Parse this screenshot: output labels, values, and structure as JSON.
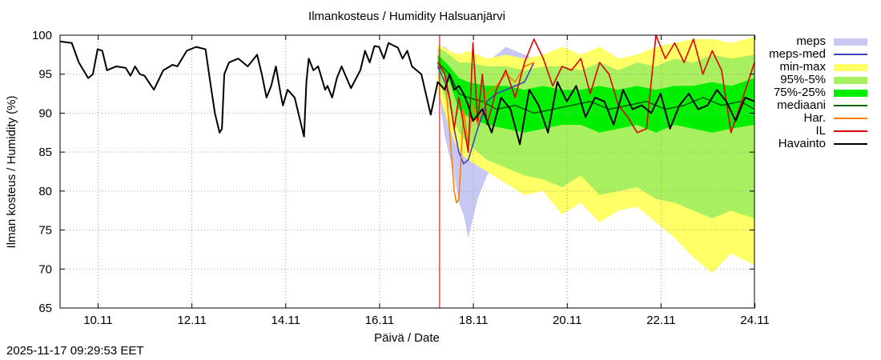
{
  "chart_data": {
    "type": "line",
    "title": "Ilmankosteus / Humidity  Halsuanjärvi",
    "xlabel": "Päivä / Date",
    "ylabel": "Ilman kosteus / Humidity (%)",
    "ylim": [
      65,
      100
    ],
    "yticks": [
      65,
      70,
      75,
      80,
      85,
      90,
      95,
      100
    ],
    "xlim": [
      9.3,
      24.1
    ],
    "xticks": [
      {
        "value": 10.11,
        "label": "10.11"
      },
      {
        "value": 12.11,
        "label": "12.11"
      },
      {
        "value": 14.11,
        "label": "14.11"
      },
      {
        "value": 16.11,
        "label": "16.11"
      },
      {
        "value": 18.11,
        "label": "18.11"
      },
      {
        "value": 20.11,
        "label": "20.11"
      },
      {
        "value": 22.11,
        "label": "22.11"
      },
      {
        "value": 24.11,
        "label": "24.11"
      }
    ],
    "forecast_start": 17.39,
    "timestamp": "2025-11-17 09:29:53 EET",
    "legend": [
      {
        "label": "meps",
        "color": "#c8c8f5",
        "kind": "box"
      },
      {
        "label": "meps-med",
        "color": "#4040c0",
        "kind": "line"
      },
      {
        "label": "min-max",
        "color": "#ffff66",
        "kind": "box"
      },
      {
        "label": "95%-5%",
        "color": "#a8f060",
        "kind": "box"
      },
      {
        "label": "75%-25%",
        "color": "#00ee00",
        "kind": "box"
      },
      {
        "label": "mediaani",
        "color": "#006400",
        "kind": "line"
      },
      {
        "label": "Har.",
        "color": "#ff8000",
        "kind": "line"
      },
      {
        "label": "IL",
        "color": "#e00000",
        "kind": "line"
      },
      {
        "label": "Havainto",
        "color": "#000000",
        "kind": "line"
      }
    ],
    "series": [
      {
        "name": "Havainto",
        "color": "#000000",
        "x": [
          9.3,
          9.55,
          9.7,
          9.9,
          10.0,
          10.1,
          10.2,
          10.3,
          10.5,
          10.7,
          10.8,
          10.9,
          11.0,
          11.1,
          11.3,
          11.5,
          11.7,
          11.8,
          12.0,
          12.2,
          12.4,
          12.5,
          12.6,
          12.7,
          12.75,
          12.8,
          12.9,
          13.1,
          13.3,
          13.5,
          13.6,
          13.7,
          13.8,
          13.9,
          14.0,
          14.05,
          14.15,
          14.3,
          14.4,
          14.5,
          14.55,
          14.6,
          14.7,
          14.8,
          14.95,
          15.0,
          15.1,
          15.2,
          15.3,
          15.5,
          15.7,
          15.8,
          15.9,
          16.0,
          16.1,
          16.2,
          16.3,
          16.5,
          16.6,
          16.7,
          16.8,
          17.0,
          17.2,
          17.35,
          17.5,
          17.6,
          17.7,
          17.8,
          17.9,
          18.0,
          18.1,
          18.3,
          18.5,
          18.7,
          18.9,
          19.1,
          19.3,
          19.5,
          19.7,
          19.9,
          20.1,
          20.3,
          20.5,
          20.7,
          20.9,
          21.1,
          21.3,
          21.5,
          21.7,
          21.9,
          22.1,
          22.3,
          22.5,
          22.7,
          22.9,
          23.1,
          23.3,
          23.5,
          23.7,
          23.9,
          24.1
        ],
        "values": [
          99.2,
          99.0,
          96.5,
          94.5,
          95.0,
          98.2,
          98.0,
          95.5,
          96.0,
          95.8,
          94.8,
          96.0,
          95.0,
          94.8,
          93.0,
          95.5,
          96.2,
          96.0,
          98.0,
          98.5,
          98.2,
          94.0,
          90.0,
          87.5,
          88.0,
          95.0,
          96.5,
          97.0,
          96.0,
          97.5,
          95.0,
          92.0,
          93.5,
          96.0,
          92.5,
          91.0,
          93.0,
          92.0,
          89.5,
          87.0,
          94.0,
          97.0,
          95.5,
          96.0,
          93.0,
          93.5,
          92.0,
          94.5,
          96.0,
          93.2,
          95.5,
          98.0,
          96.5,
          98.6,
          98.5,
          97.0,
          99.0,
          98.4,
          97.0,
          98.0,
          96.0,
          95.0,
          89.8,
          94.0,
          93.0,
          95.0,
          93.0,
          93.5,
          92.5,
          91.0,
          89.0,
          90.5,
          87.5,
          92.0,
          90.5,
          86.0,
          93.0,
          91.0,
          87.5,
          94.0,
          91.5,
          93.5,
          89.5,
          92.0,
          91.5,
          88.5,
          93.0,
          90.5,
          91.0,
          90.0,
          92.5,
          88.0,
          91.0,
          92.5,
          90.5,
          91.0,
          93.0,
          91.5,
          89.0,
          92.0,
          91.5
        ]
      },
      {
        "name": "mediaani",
        "color": "#006400",
        "x": [
          17.35,
          17.6,
          17.8,
          18.0,
          18.3,
          18.6,
          19.0,
          19.4,
          19.8,
          20.2,
          20.6,
          21.0,
          21.4,
          21.8,
          22.2,
          22.6,
          23.0,
          23.4,
          23.8,
          24.1
        ],
        "values": [
          96.5,
          95.0,
          92.5,
          92.0,
          91.5,
          90.5,
          91.0,
          90.0,
          90.5,
          91.0,
          91.5,
          90.5,
          91.0,
          91.5,
          90.5,
          91.0,
          92.0,
          91.0,
          91.5,
          90.5
        ]
      },
      {
        "name": "meps-med",
        "color": "#4040c0",
        "x": [
          17.35,
          17.5,
          17.6,
          17.7,
          17.8,
          17.9,
          18.0,
          18.2,
          18.4,
          18.6,
          18.8,
          19.0,
          19.2,
          19.4
        ],
        "values": [
          96.0,
          94.0,
          92.0,
          88.0,
          85.0,
          83.5,
          84.0,
          88.0,
          91.5,
          92.5,
          93.0,
          93.5,
          94.0,
          96.5
        ]
      },
      {
        "name": "Har.",
        "color": "#ff8000",
        "x": [
          17.35,
          17.5,
          17.6,
          17.7,
          17.75,
          17.8,
          17.9,
          18.0,
          18.1,
          18.2,
          18.4,
          18.6,
          18.8,
          19.0,
          19.2,
          19.4
        ],
        "values": [
          96.5,
          95.0,
          88.0,
          80.0,
          78.5,
          79.0,
          90.5,
          86.0,
          91.0,
          88.5,
          92.5,
          93.5,
          95.0,
          94.0,
          96.0,
          96.5
        ]
      },
      {
        "name": "IL",
        "color": "#e00000",
        "x": [
          17.35,
          17.5,
          17.6,
          17.7,
          17.8,
          17.9,
          18.0,
          18.1,
          18.2,
          18.3,
          18.4,
          18.6,
          18.8,
          19.0,
          19.2,
          19.4,
          19.6,
          19.8,
          20.0,
          20.2,
          20.4,
          20.6,
          20.8,
          21.0,
          21.2,
          21.4,
          21.6,
          21.8,
          22.0,
          22.2,
          22.4,
          22.6,
          22.8,
          23.0,
          23.2,
          23.4,
          23.6,
          23.8,
          24.1
        ],
        "values": [
          96.5,
          95.0,
          92.0,
          88.0,
          92.0,
          88.5,
          85.0,
          99.0,
          89.0,
          95.0,
          88.5,
          93.0,
          95.5,
          92.0,
          96.5,
          99.5,
          97.0,
          93.5,
          96.0,
          95.5,
          97.0,
          92.5,
          96.5,
          95.0,
          91.0,
          89.5,
          87.5,
          88.0,
          100.0,
          97.0,
          99.0,
          96.5,
          99.5,
          95.0,
          98.0,
          95.5,
          87.5,
          91.0,
          96.5
        ]
      }
    ],
    "bands": [
      {
        "name": "meps",
        "color": "#c8c8f5",
        "x": [
          17.35,
          17.5,
          17.6,
          17.7,
          17.8,
          17.9,
          18.0,
          18.2,
          18.4,
          18.6,
          18.8,
          19.0,
          19.2,
          19.4
        ],
        "upper": [
          98.5,
          98.5,
          98.0,
          96.5,
          95.5,
          95.0,
          95.0,
          96.0,
          96.5,
          97.5,
          98.5,
          98.0,
          97.5,
          97.0
        ],
        "lower": [
          93.5,
          87.0,
          84.5,
          82.0,
          78.5,
          77.0,
          74.0,
          79.0,
          82.0,
          83.5,
          84.0,
          82.5,
          80.5,
          85.0
        ]
      },
      {
        "name": "min-max",
        "color": "#ffff66",
        "x": [
          17.35,
          17.6,
          17.8,
          18.0,
          18.4,
          18.8,
          19.2,
          19.6,
          20.0,
          20.4,
          20.8,
          21.2,
          21.6,
          22.0,
          22.4,
          22.8,
          23.2,
          23.6,
          24.1
        ],
        "upper": [
          98.8,
          98.0,
          97.5,
          98.0,
          97.0,
          97.5,
          97.0,
          97.5,
          98.5,
          97.5,
          98.5,
          97.0,
          97.5,
          98.5,
          99.0,
          99.5,
          99.5,
          99.0,
          99.8
        ],
        "lower": [
          93.0,
          88.0,
          85.0,
          84.0,
          82.5,
          81.0,
          79.5,
          80.0,
          77.0,
          78.5,
          76.0,
          77.5,
          78.0,
          76.0,
          74.0,
          71.5,
          69.5,
          72.0,
          70.5
        ]
      },
      {
        "name": "95%-5%",
        "color": "#a8f060",
        "x": [
          17.35,
          17.6,
          17.8,
          18.0,
          18.4,
          18.8,
          19.2,
          19.6,
          20.0,
          20.4,
          20.8,
          21.2,
          21.6,
          22.0,
          22.4,
          22.8,
          23.2,
          23.6,
          24.1
        ],
        "upper": [
          98.5,
          97.5,
          96.5,
          96.5,
          96.0,
          96.0,
          95.5,
          96.0,
          96.0,
          95.5,
          96.5,
          95.5,
          96.5,
          96.0,
          97.0,
          96.5,
          97.5,
          97.0,
          97.5
        ],
        "lower": [
          94.5,
          90.5,
          87.5,
          86.0,
          84.0,
          83.0,
          82.0,
          81.5,
          80.5,
          82.0,
          79.5,
          80.0,
          80.5,
          79.0,
          78.5,
          77.5,
          76.5,
          77.5,
          76.5
        ]
      },
      {
        "name": "75%-25%",
        "color": "#00ee00",
        "x": [
          17.35,
          17.6,
          17.8,
          18.0,
          18.4,
          18.8,
          19.2,
          19.6,
          20.0,
          20.4,
          20.8,
          21.2,
          21.6,
          22.0,
          22.4,
          22.8,
          23.2,
          23.6,
          24.1
        ],
        "upper": [
          97.5,
          96.0,
          94.5,
          94.0,
          93.5,
          93.5,
          93.0,
          93.5,
          93.0,
          93.0,
          93.5,
          93.0,
          93.5,
          93.0,
          93.5,
          93.5,
          94.0,
          93.5,
          94.5
        ],
        "lower": [
          96.0,
          94.0,
          90.5,
          89.5,
          88.5,
          88.0,
          87.5,
          88.0,
          88.5,
          88.5,
          87.5,
          88.0,
          88.5,
          87.5,
          88.5,
          88.0,
          87.5,
          88.0,
          88.5
        ]
      }
    ]
  }
}
